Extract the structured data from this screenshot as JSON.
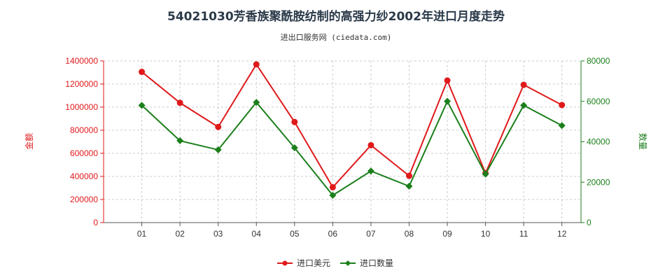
{
  "chart_data": {
    "type": "line",
    "title": "54021030芳香族聚酰胺纺制的高强力纱2002年进口月度走势",
    "subtitle": "进出口服务网 (ciedata.com)",
    "categories": [
      "01",
      "02",
      "03",
      "04",
      "05",
      "06",
      "07",
      "08",
      "09",
      "10",
      "11",
      "12"
    ],
    "y_left": {
      "label": "金额",
      "range": [
        0,
        1400000
      ],
      "ticks": [
        0,
        200000,
        400000,
        600000,
        800000,
        1000000,
        1200000,
        1400000
      ],
      "tick_labels": [
        "0",
        "200000",
        "400000",
        "600000",
        "800000",
        "1000000",
        "1200000",
        "1400000"
      ]
    },
    "y_right": {
      "label": "数量",
      "range": [
        0,
        80000
      ],
      "ticks": [
        0,
        20000,
        40000,
        60000,
        80000
      ],
      "tick_labels": [
        "0",
        "20000",
        "40000",
        "60000",
        "80000"
      ]
    },
    "series": [
      {
        "name": "进口美元",
        "axis": "left",
        "color": "#e0191b",
        "marker": "circle",
        "values": [
          1305000,
          1037000,
          828000,
          1370000,
          871000,
          306000,
          670000,
          405000,
          1230000,
          428000,
          1193000,
          1018000
        ]
      },
      {
        "name": "进口数量",
        "axis": "right",
        "color": "#1b7f1b",
        "marker": "diamond",
        "values": [
          58000,
          40500,
          36000,
          59500,
          37000,
          13500,
          25500,
          18000,
          60000,
          24000,
          58000,
          48000
        ]
      }
    ],
    "grid": true,
    "legend_position": "bottom"
  }
}
